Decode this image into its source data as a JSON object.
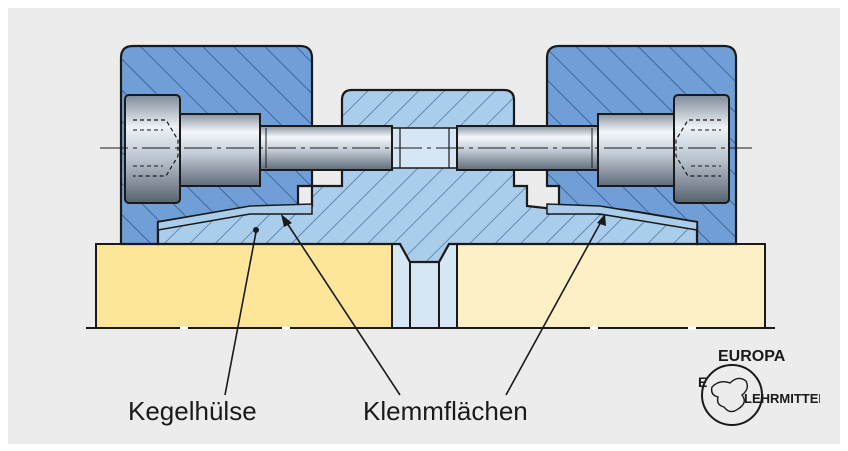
{
  "figure": {
    "labels": {
      "kegelhuelse": "Kegelhülse",
      "klemmflaechen": "Klemmflächen"
    },
    "logo": {
      "top": "EUROPA",
      "bottom": "LEHRMITTEL",
      "left": "E"
    },
    "colors": {
      "frame_bg": "#ececec",
      "outer_blue": "#6f9fd6",
      "inner_blue": "#a9cdea",
      "screw_steel": "#c9d2dc",
      "shaft_yellow_left": "#fde69a",
      "shaft_yellow_right": "#fdf0c6",
      "outline": "#1a1a1a"
    }
  }
}
